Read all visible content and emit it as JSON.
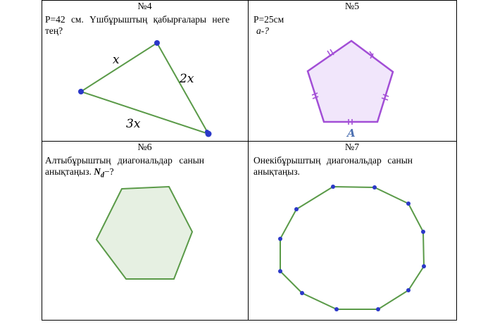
{
  "cells": [
    {
      "number": "№4",
      "task_line1": "P=42 см. Үшбұрыштың қабырғалары неге",
      "task_line2": "тең?",
      "labels": {
        "side_a": "x",
        "side_b": "2x",
        "side_c": "3x"
      }
    },
    {
      "number": "№5",
      "task_line1": "P=25см",
      "task_line2": "a-?",
      "vertex_label": "A"
    },
    {
      "number": "№6",
      "task_line1": "Алтыбұрыштың диагональдар санын",
      "task_line2_prefix": "анықтаңыз. ",
      "task_var": "N",
      "task_sub": "d",
      "task_suffix": "−?"
    },
    {
      "number": "№7",
      "task_line1": "Онекібұрыштың диагональдар санын",
      "task_line2": "анықтаңыз."
    }
  ],
  "colors": {
    "triangle": "#5a9a48",
    "pentagon_stroke": "#a24ed6",
    "pentagon_fill": "#f1e6fb",
    "hexagon_fill": "#e6f0e2",
    "points": "#2b38c8",
    "vertex_label": "#4b6fb0"
  }
}
